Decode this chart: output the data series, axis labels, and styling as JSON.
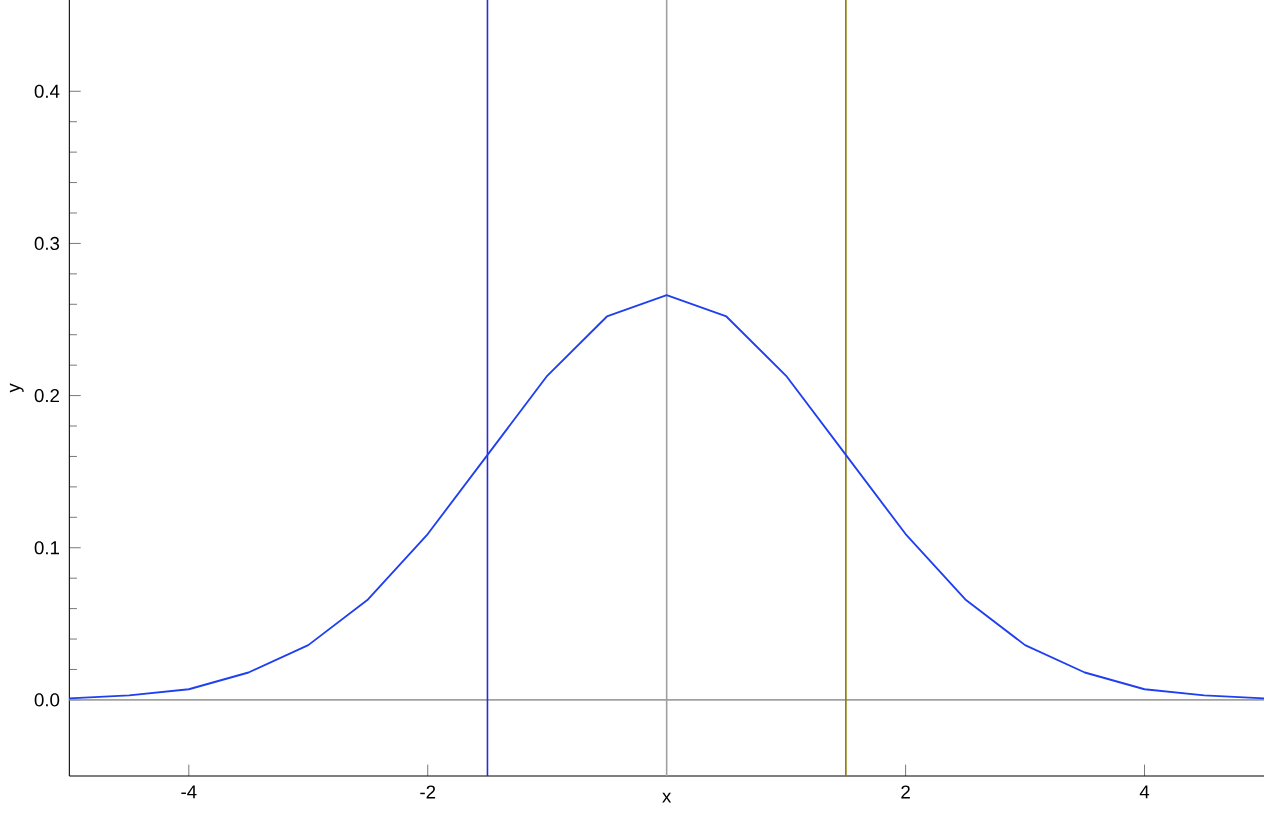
{
  "chart_data": {
    "type": "line",
    "xlabel": "x",
    "ylabel": "y",
    "x": [
      -5,
      -4.5,
      -4,
      -3.5,
      -3,
      -2.5,
      -2,
      -1.5,
      -1,
      -0.5,
      0,
      0.5,
      1,
      1.5,
      2,
      2.5,
      3,
      3.5,
      4,
      4.5,
      5
    ],
    "series": [
      {
        "color": "#2040f0",
        "values": [
          0.001,
          0.003,
          0.007,
          0.018,
          0.036,
          0.066,
          0.109,
          0.161,
          0.213,
          0.252,
          0.266,
          0.252,
          0.213,
          0.161,
          0.109,
          0.066,
          0.036,
          0.018,
          0.007,
          0.003,
          0.001
        ]
      }
    ],
    "xlim": [
      -5,
      5
    ],
    "ylim": [
      -0.05,
      0.46
    ],
    "xticks": [
      -4,
      -2,
      2,
      4
    ],
    "yticks": [
      {
        "value": 0,
        "label": "0.0"
      },
      {
        "value": 0.1,
        "label": "0.1"
      },
      {
        "value": 0.2,
        "label": "0.2"
      },
      {
        "value": 0.3,
        "label": "0.3"
      },
      {
        "value": 0.4,
        "label": "0.4"
      }
    ],
    "ref_lines": [
      {
        "axis": "x",
        "value": 0,
        "color": "#a0a0a0"
      },
      {
        "axis": "y",
        "value": 0,
        "color": "#a0a0a0"
      },
      {
        "axis": "x",
        "value": -1.5,
        "color": "#2b2bd6"
      },
      {
        "axis": "x",
        "value": 1.5,
        "color": "#8c7a00"
      }
    ],
    "grid": false,
    "marker": "none",
    "line_style": "solid"
  }
}
